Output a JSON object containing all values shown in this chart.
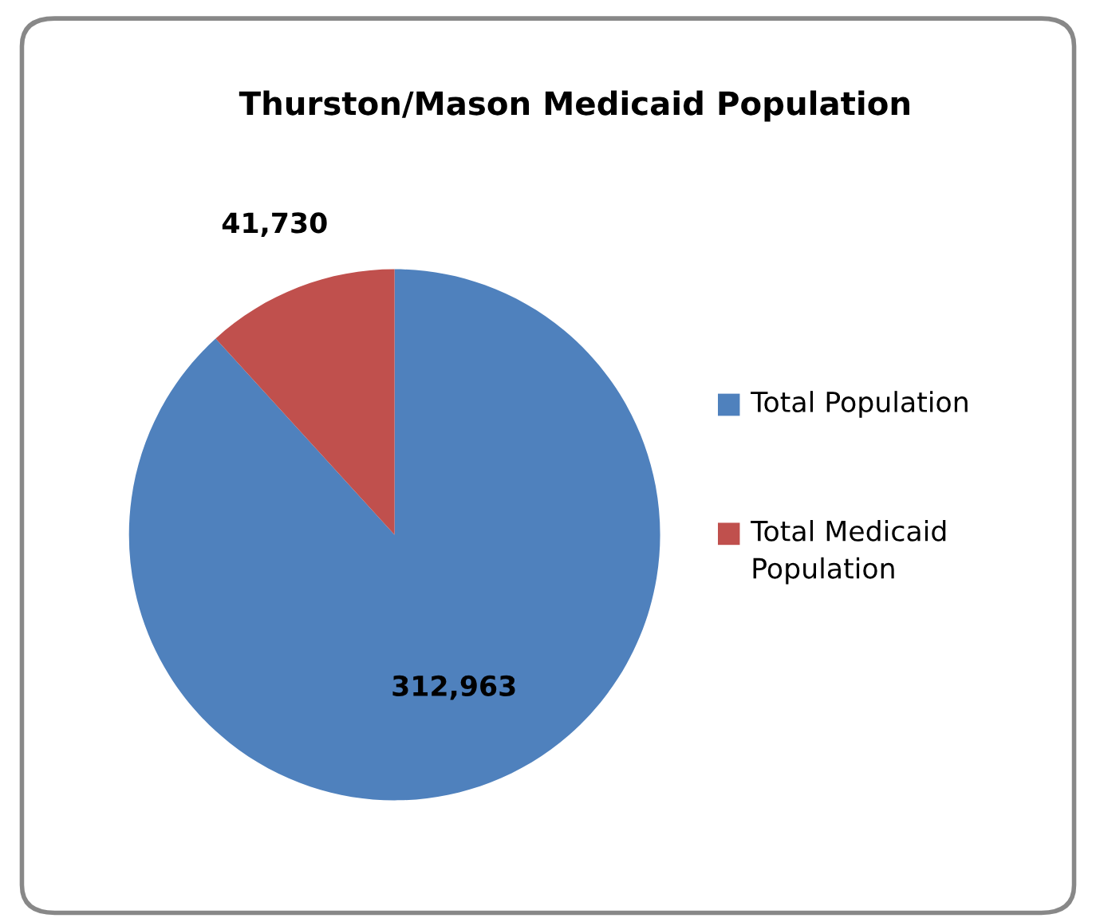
{
  "chart_data": {
    "type": "pie",
    "title": "Thurston/Mason Medicaid Population",
    "categories": [
      "Total Population",
      "Total Medicaid Population"
    ],
    "values": [
      312963,
      41730
    ],
    "colors": [
      "#4f81bd",
      "#c0504d"
    ],
    "value_labels": [
      "312,963",
      "41,730"
    ],
    "legend": "right"
  }
}
